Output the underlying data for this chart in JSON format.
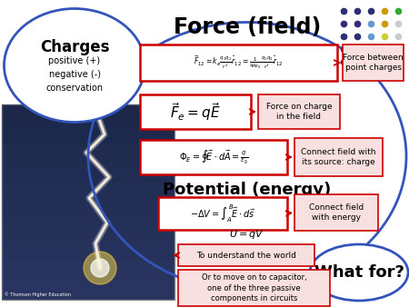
{
  "title": "Force (field)",
  "charges_title": "Charges",
  "charges_subtitle": "positive (+)\nnegative (-)\nconservation",
  "potential_title": "Potential (energy)",
  "whatfor_text": "What for?",
  "background_color": "#ffffff",
  "big_circle_color": "#3355bb",
  "charges_circle_color": "#3355bb",
  "whatfor_circle_color": "#3355bb",
  "eq_box_color": "#cc0000",
  "label_box_facecolor": "#f8e0e0",
  "arrow_color": "#cc0000",
  "dot_colors": [
    [
      "#2d2d7a",
      "#2d2d7a",
      "#2d2d7a",
      "#cc9900",
      "#33aa33"
    ],
    [
      "#2d2d7a",
      "#2d2d7a",
      "#6699cc",
      "#cc9900",
      "#cccccc"
    ],
    [
      "#2d2d7a",
      "#2d2d7a",
      "#6699cc",
      "#cccc33",
      "#cccccc"
    ],
    [
      "#2d2d7a",
      "#2d2d7a",
      "#6699cc",
      "#cccc33",
      "#cccccc"
    ],
    [
      "#2d2d7a",
      "#cc9900",
      "#cc9900",
      "#cccc33",
      "#cccccc"
    ]
  ]
}
